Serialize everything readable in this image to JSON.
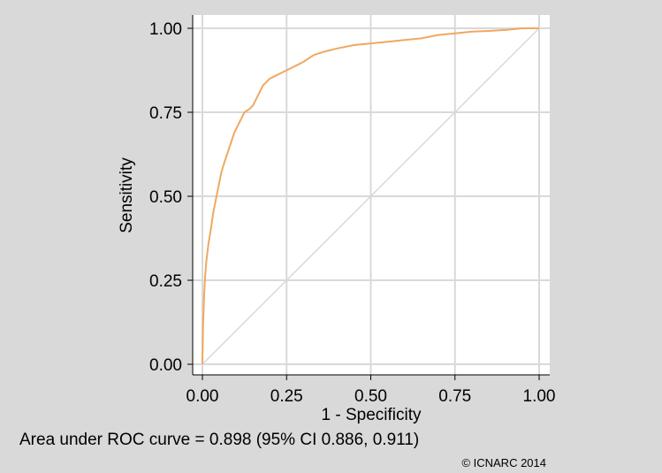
{
  "chart_data": {
    "type": "line",
    "title": "",
    "xlabel": "1 - Specificity",
    "ylabel": "Sensitivity",
    "xlim": [
      0,
      1
    ],
    "ylim": [
      0,
      1
    ],
    "x_ticks": [
      "0.00",
      "0.25",
      "0.50",
      "0.75",
      "1.00"
    ],
    "y_ticks": [
      "0.00",
      "0.25",
      "0.50",
      "0.75",
      "1.00"
    ],
    "grid": true,
    "series": [
      {
        "color": "#f0a860",
        "x": [
          0.0,
          0.002,
          0.005,
          0.008,
          0.012,
          0.018,
          0.025,
          0.032,
          0.04,
          0.048,
          0.056,
          0.065,
          0.075,
          0.085,
          0.095,
          0.105,
          0.115,
          0.125,
          0.14,
          0.15,
          0.16,
          0.17,
          0.18,
          0.19,
          0.2,
          0.22,
          0.24,
          0.26,
          0.28,
          0.3,
          0.33,
          0.36,
          0.4,
          0.45,
          0.5,
          0.55,
          0.6,
          0.65,
          0.7,
          0.75,
          0.8,
          0.85,
          0.9,
          0.95,
          1.0
        ],
        "y": [
          0.0,
          0.12,
          0.2,
          0.26,
          0.31,
          0.36,
          0.4,
          0.45,
          0.49,
          0.53,
          0.57,
          0.6,
          0.63,
          0.66,
          0.69,
          0.71,
          0.73,
          0.75,
          0.76,
          0.77,
          0.79,
          0.81,
          0.83,
          0.84,
          0.85,
          0.86,
          0.87,
          0.88,
          0.89,
          0.9,
          0.92,
          0.93,
          0.94,
          0.95,
          0.955,
          0.96,
          0.965,
          0.97,
          0.98,
          0.985,
          0.99,
          0.992,
          0.995,
          1.0,
          1.0
        ]
      },
      {
        "color": "#d9d9d9",
        "x": [
          0,
          1
        ],
        "y": [
          0,
          1
        ]
      }
    ],
    "annotations": {
      "auc_text": "Area under ROC curve = 0.898 (95% CI 0.886, 0.911)",
      "copyright": "© ICNARC 2014"
    }
  },
  "colors": {
    "background": "#d9d9d9",
    "plot_background": "#ffffff",
    "grid": "#d9d9d9",
    "axis": "#000000"
  }
}
